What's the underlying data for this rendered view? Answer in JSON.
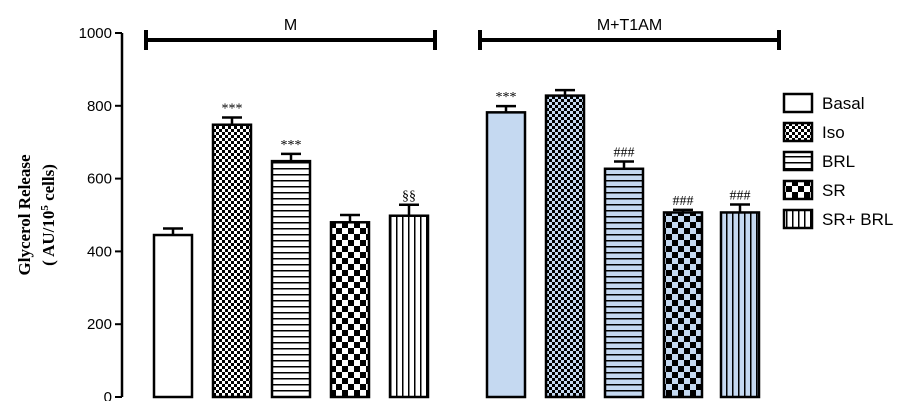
{
  "chart_data": {
    "type": "bar",
    "ylabel_line1": "Glycerol Release",
    "ylabel_line2_prefix": "( AU/10",
    "ylabel_line2_sup": "5",
    "ylabel_line2_suffix": " cells)",
    "ylim": [
      0,
      1000
    ],
    "yticks": [
      "0",
      "200",
      "400",
      "600",
      "800",
      "1000"
    ],
    "legend_position": "right",
    "colors": {
      "M": "#ffffff",
      "M+T1AM": "#c5d9f1"
    },
    "groups": [
      {
        "name": "M",
        "bars": [
          {
            "series": "Basal",
            "value": 445,
            "error": 18,
            "annotation": ""
          },
          {
            "series": "Iso",
            "value": 748,
            "error": 20,
            "annotation": "***"
          },
          {
            "series": "BRL",
            "value": 648,
            "error": 20,
            "annotation": "***"
          },
          {
            "series": "SR",
            "value": 480,
            "error": 20,
            "annotation": ""
          },
          {
            "series": "SR+ BRL",
            "value": 498,
            "error": 30,
            "annotation": "§§"
          }
        ]
      },
      {
        "name": "M+T1AM",
        "bars": [
          {
            "series": "Basal",
            "value": 782,
            "error": 17,
            "annotation": "***"
          },
          {
            "series": "Iso",
            "value": 828,
            "error": 15,
            "annotation": ""
          },
          {
            "series": "BRL",
            "value": 627,
            "error": 20,
            "annotation": "###"
          },
          {
            "series": "SR",
            "value": 507,
            "error": 7,
            "annotation": "###"
          },
          {
            "series": "SR+ BRL",
            "value": 507,
            "error": 22,
            "annotation": "###"
          }
        ]
      }
    ],
    "legend": [
      "Basal",
      "Iso",
      "BRL",
      "SR",
      "SR+ BRL"
    ],
    "patterns": {
      "Basal": "plain",
      "Iso": "fine-check",
      "BRL": "horizontal",
      "SR": "coarse-check",
      "SR+ BRL": "vertical"
    }
  }
}
